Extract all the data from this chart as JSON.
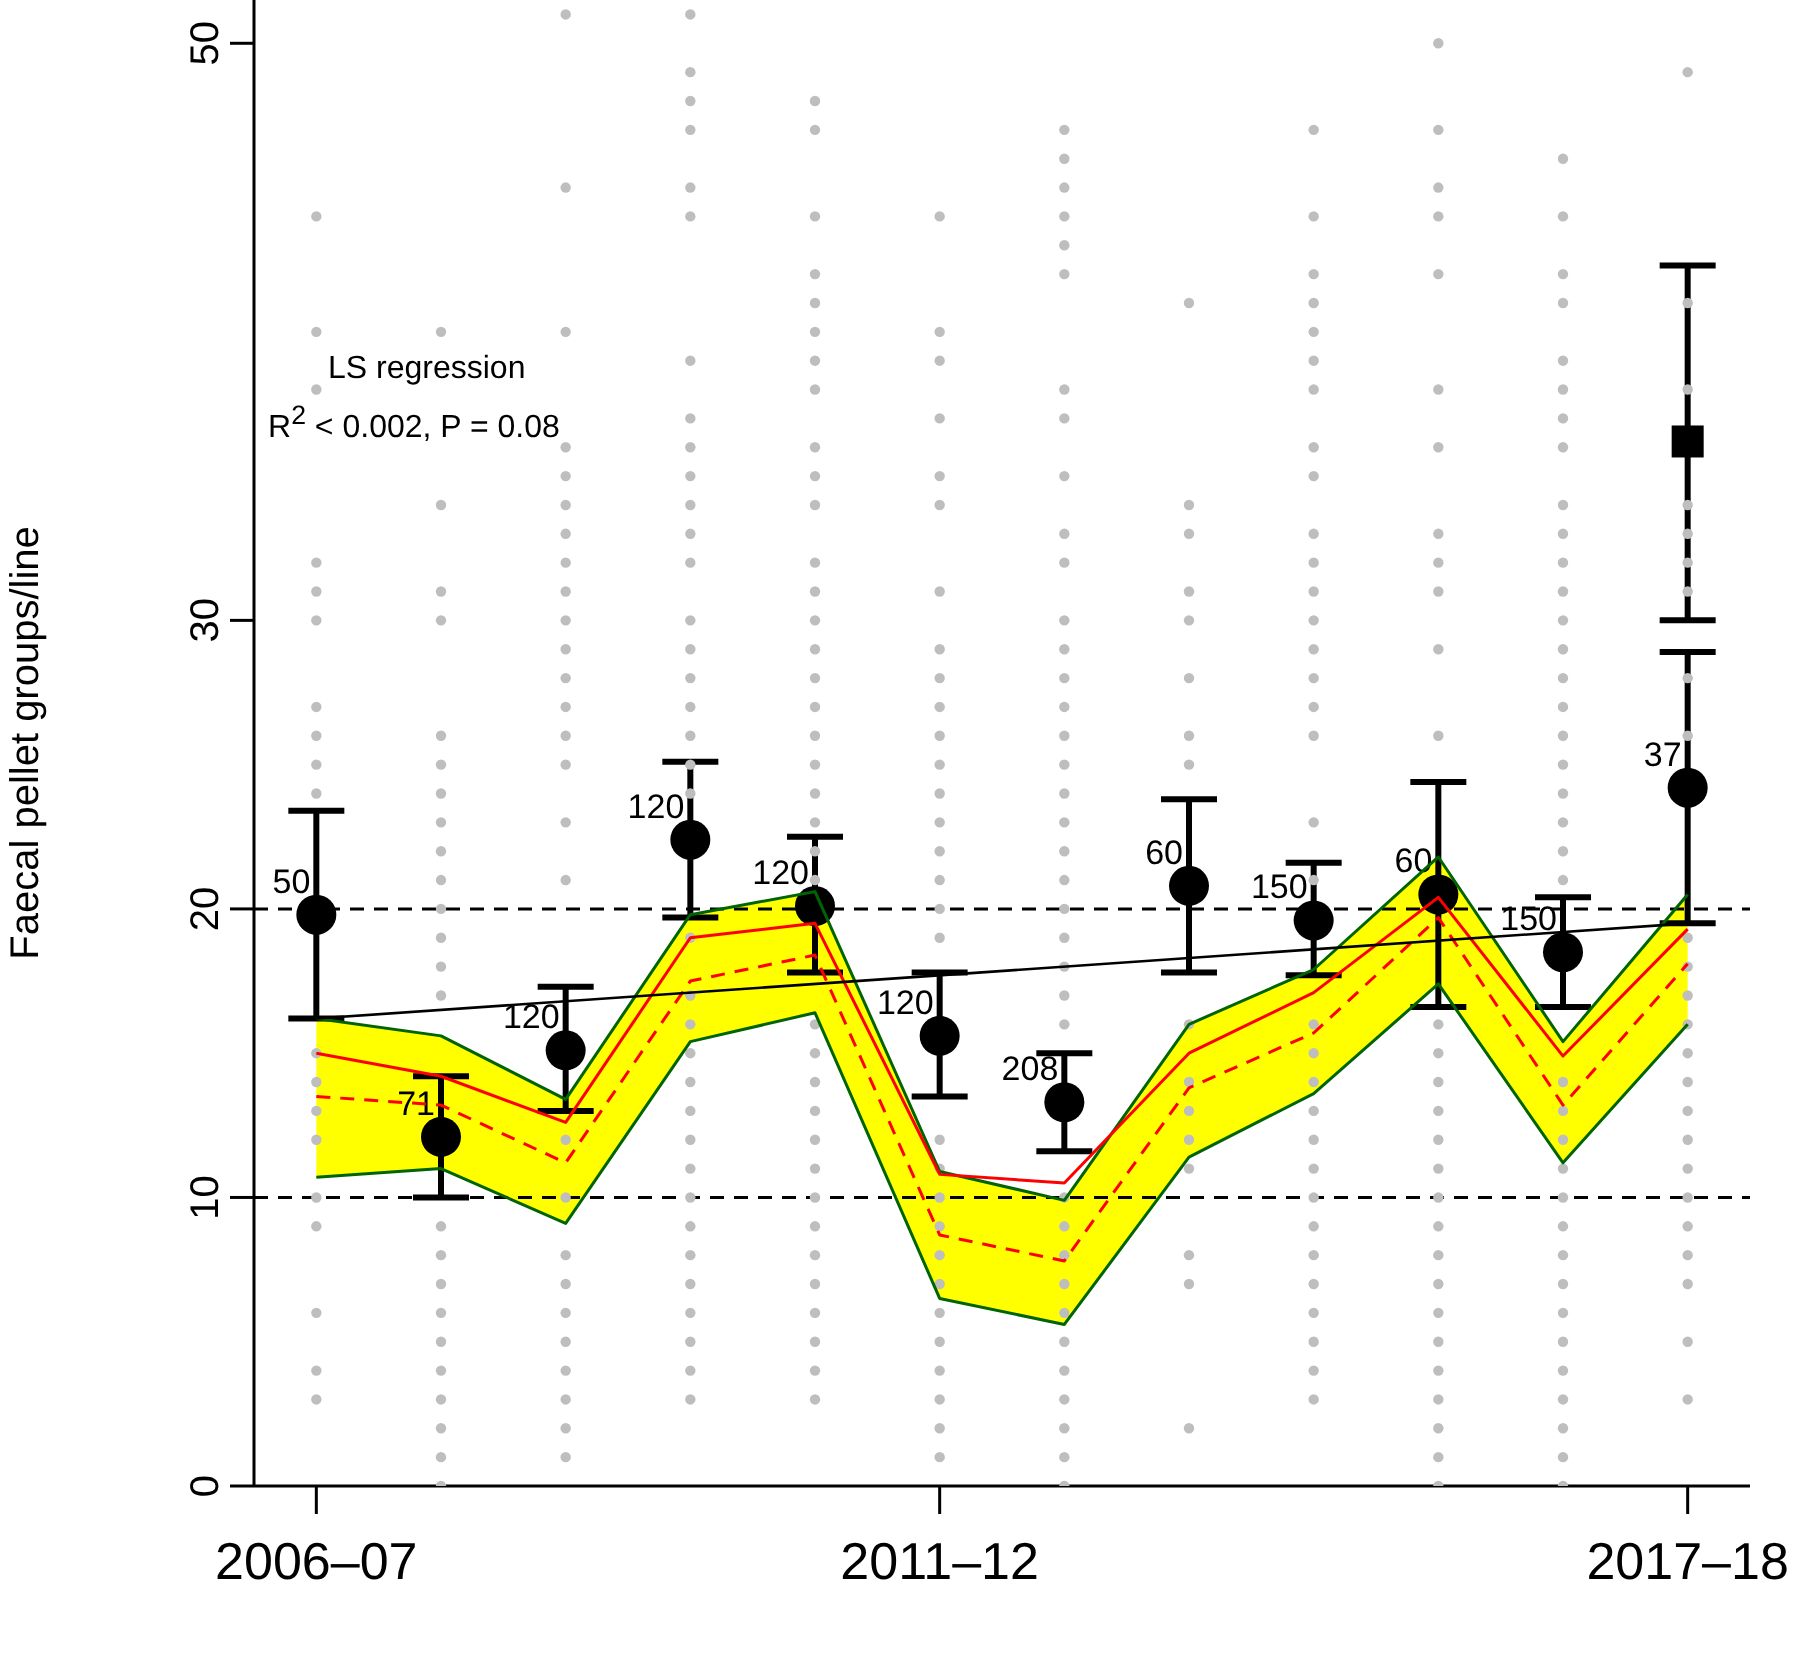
{
  "chart_data": {
    "type": "scatter",
    "ylabel": "Faecal pellet groups/line",
    "x": [
      "2006",
      "2007",
      "2008",
      "2009",
      "2010",
      "2011",
      "2012",
      "2013",
      "2014",
      "2015",
      "2016",
      "2017"
    ],
    "xlim": [
      "2005-07",
      "2017-07"
    ],
    "xticks": [
      {
        "value": "2006",
        "label": "2006–07"
      },
      {
        "value": "2011",
        "label": "2011–12"
      },
      {
        "value": "2017",
        "label": "2017–18"
      }
    ],
    "ylim": [
      0,
      51.5
    ],
    "yticks": [
      0,
      10,
      20,
      30,
      50
    ],
    "grid": false,
    "legend": false,
    "annotations": [
      "LS regression",
      "R$^{2}$ < 0.002, P  = 0.08",
      {
        "text": "50",
        "x": "2006",
        "y": 19.8
      },
      {
        "text": "71",
        "x": "2007",
        "y": 12.1
      },
      {
        "text": "120",
        "x": "2008",
        "y": 15.1
      },
      {
        "text": "120",
        "x": "2009",
        "y": 22.4
      },
      {
        "text": "120",
        "x": "2010",
        "y": 20.1
      },
      {
        "text": "120",
        "x": "2011",
        "y": 15.6
      },
      {
        "text": "208",
        "x": "2012",
        "y": 13.3
      },
      {
        "text": "60",
        "x": "2013",
        "y": 20.8
      },
      {
        "text": "150",
        "x": "2014",
        "y": 19.6
      },
      {
        "text": "60",
        "x": "2015",
        "y": 20.5
      },
      {
        "text": "150",
        "x": "2016",
        "y": 18.5
      },
      {
        "text": "37",
        "x": "2017",
        "y": 24.2
      }
    ],
    "ref_lines": [
      {
        "axis": "y",
        "value": 10,
        "color": "#000000",
        "line_style": "dashed"
      },
      {
        "axis": "y",
        "value": 20,
        "color": "#000000",
        "line_style": "dashed"
      }
    ],
    "series": [
      {
        "type": "scatter",
        "color": "#bebebe",
        "marker": "circle",
        "x": [
          "2006",
          "2006",
          "2006",
          "2006",
          "2006",
          "2006",
          "2006",
          "2006",
          "2006",
          "2006",
          "2006",
          "2006",
          "2006",
          "2006",
          "2006",
          "2006",
          "2006",
          "2006",
          "2006",
          "2007",
          "2007",
          "2007",
          "2007",
          "2007",
          "2007",
          "2007",
          "2007",
          "2007",
          "2007",
          "2007",
          "2007",
          "2007",
          "2007",
          "2007",
          "2007",
          "2007",
          "2007",
          "2007",
          "2007",
          "2007",
          "2007",
          "2007",
          "2007",
          "2008",
          "2008",
          "2008",
          "2008",
          "2008",
          "2008",
          "2008",
          "2008",
          "2008",
          "2008",
          "2008",
          "2008",
          "2008",
          "2008",
          "2008",
          "2008",
          "2008",
          "2008",
          "2008",
          "2008",
          "2008",
          "2008",
          "2008",
          "2008",
          "2008",
          "2008",
          "2008",
          "2009",
          "2009",
          "2009",
          "2009",
          "2009",
          "2009",
          "2009",
          "2009",
          "2009",
          "2009",
          "2009",
          "2009",
          "2009",
          "2009",
          "2009",
          "2009",
          "2009",
          "2009",
          "2009",
          "2009",
          "2009",
          "2009",
          "2009",
          "2009",
          "2009",
          "2009",
          "2009",
          "2009",
          "2009",
          "2009",
          "2009",
          "2009",
          "2009",
          "2009",
          "2009",
          "2009",
          "2010",
          "2010",
          "2010",
          "2010",
          "2010",
          "2010",
          "2010",
          "2010",
          "2010",
          "2010",
          "2010",
          "2010",
          "2010",
          "2010",
          "2010",
          "2010",
          "2010",
          "2010",
          "2010",
          "2010",
          "2010",
          "2010",
          "2010",
          "2010",
          "2010",
          "2010",
          "2010",
          "2010",
          "2010",
          "2010",
          "2010",
          "2010",
          "2010",
          "2010",
          "2010",
          "2010",
          "2010",
          "2011",
          "2011",
          "2011",
          "2011",
          "2011",
          "2011",
          "2011",
          "2011",
          "2011",
          "2011",
          "2011",
          "2011",
          "2011",
          "2011",
          "2011",
          "2011",
          "2011",
          "2011",
          "2011",
          "2011",
          "2011",
          "2011",
          "2011",
          "2011",
          "2011",
          "2011",
          "2011",
          "2011",
          "2011",
          "2011",
          "2012",
          "2012",
          "2012",
          "2012",
          "2012",
          "2012",
          "2012",
          "2012",
          "2012",
          "2012",
          "2012",
          "2012",
          "2012",
          "2012",
          "2012",
          "2012",
          "2012",
          "2012",
          "2012",
          "2012",
          "2012",
          "2012",
          "2012",
          "2012",
          "2012",
          "2012",
          "2012",
          "2012",
          "2012",
          "2012",
          "2012",
          "2012",
          "2012",
          "2012",
          "2012",
          "2012",
          "2012",
          "2013",
          "2013",
          "2013",
          "2013",
          "2013",
          "2013",
          "2013",
          "2013",
          "2013",
          "2013",
          "2013",
          "2013",
          "2013",
          "2013",
          "2013",
          "2013",
          "2014",
          "2014",
          "2014",
          "2014",
          "2014",
          "2014",
          "2014",
          "2014",
          "2014",
          "2014",
          "2014",
          "2014",
          "2014",
          "2014",
          "2014",
          "2014",
          "2014",
          "2014",
          "2014",
          "2014",
          "2014",
          "2014",
          "2014",
          "2014",
          "2014",
          "2014",
          "2014",
          "2014",
          "2014",
          "2014",
          "2014",
          "2014",
          "2014",
          "2015",
          "2015",
          "2015",
          "2015",
          "2015",
          "2015",
          "2015",
          "2015",
          "2015",
          "2015",
          "2015",
          "2015",
          "2015",
          "2015",
          "2015",
          "2015",
          "2015",
          "2015",
          "2015",
          "2015",
          "2015",
          "2015",
          "2015",
          "2015",
          "2015",
          "2015",
          "2015",
          "2015",
          "2015",
          "2016",
          "2016",
          "2016",
          "2016",
          "2016",
          "2016",
          "2016",
          "2016",
          "2016",
          "2016",
          "2016",
          "2016",
          "2016",
          "2016",
          "2016",
          "2016",
          "2016",
          "2016",
          "2016",
          "2016",
          "2016",
          "2016",
          "2016",
          "2016",
          "2016",
          "2016",
          "2016",
          "2016",
          "2016",
          "2016",
          "2016",
          "2016",
          "2016",
          "2016",
          "2016",
          "2016",
          "2016",
          "2017",
          "2017",
          "2017",
          "2017",
          "2017",
          "2017",
          "2017",
          "2017",
          "2017",
          "2017",
          "2017",
          "2017",
          "2017",
          "2017",
          "2017",
          "2017",
          "2017",
          "2017",
          "2017",
          "2017",
          "2017",
          "2017",
          "2017",
          "2017"
        ],
        "values": [
          44,
          40,
          38,
          32,
          31,
          30,
          27,
          26,
          25,
          24,
          15,
          14,
          13,
          12,
          10,
          9,
          6,
          4,
          3,
          40,
          34,
          31,
          30,
          26,
          25,
          24,
          23,
          22,
          21,
          20,
          19,
          18,
          17,
          9,
          8,
          7,
          6,
          5,
          4,
          3,
          2,
          1,
          0,
          51,
          45,
          40,
          36,
          35,
          34,
          33,
          32,
          31,
          30,
          29,
          28,
          27,
          26,
          25,
          23,
          21,
          12,
          10,
          8,
          7,
          6,
          5,
          4,
          3,
          2,
          1,
          51,
          49,
          48,
          47,
          45,
          44,
          39,
          37,
          36,
          35,
          34,
          33,
          32,
          30,
          29,
          28,
          27,
          26,
          25,
          24,
          19,
          17,
          16,
          15,
          14,
          13,
          12,
          11,
          10,
          9,
          8,
          7,
          6,
          5,
          4,
          3,
          48,
          47,
          44,
          42,
          41,
          40,
          39,
          38,
          36,
          35,
          34,
          32,
          31,
          30,
          29,
          28,
          27,
          26,
          25,
          24,
          23,
          22,
          21,
          16,
          15,
          14,
          13,
          12,
          11,
          10,
          9,
          8,
          7,
          6,
          5,
          4,
          3,
          44,
          40,
          39,
          37,
          35,
          34,
          31,
          29,
          28,
          27,
          26,
          25,
          24,
          23,
          22,
          21,
          20,
          19,
          12,
          11,
          10,
          9,
          8,
          7,
          6,
          5,
          4,
          3,
          2,
          1,
          47,
          46,
          45,
          44,
          43,
          42,
          38,
          37,
          35,
          33,
          32,
          30,
          29,
          28,
          27,
          26,
          25,
          24,
          23,
          22,
          21,
          20,
          19,
          18,
          17,
          16,
          10,
          9,
          8,
          7,
          6,
          5,
          4,
          3,
          2,
          1,
          0,
          41,
          34,
          33,
          31,
          30,
          28,
          26,
          25,
          16,
          14,
          13,
          12,
          11,
          8,
          7,
          2,
          47,
          44,
          42,
          41,
          40,
          39,
          38,
          36,
          35,
          33,
          32,
          31,
          30,
          29,
          28,
          27,
          26,
          23,
          21,
          16,
          15,
          14,
          13,
          12,
          11,
          10,
          9,
          8,
          7,
          6,
          5,
          4,
          3,
          50,
          47,
          45,
          44,
          42,
          38,
          36,
          33,
          32,
          31,
          29,
          26,
          16,
          15,
          14,
          13,
          12,
          11,
          10,
          9,
          8,
          7,
          6,
          5,
          4,
          3,
          2,
          1,
          0,
          46,
          44,
          42,
          41,
          39,
          38,
          37,
          36,
          34,
          33,
          32,
          31,
          30,
          29,
          28,
          27,
          26,
          25,
          24,
          23,
          22,
          21,
          14,
          13,
          12,
          11,
          10,
          9,
          8,
          7,
          6,
          5,
          4,
          3,
          2,
          1,
          0,
          49,
          41,
          38,
          34,
          33,
          32,
          31,
          28,
          26,
          19,
          18,
          17,
          16,
          15,
          14,
          13,
          12,
          11,
          10,
          9,
          8,
          7,
          5,
          3
        ]
      },
      {
        "type": "line",
        "color": "#006400",
        "line_style": "solid",
        "values": [
          10.7,
          11.0,
          9.1,
          15.4,
          16.4,
          6.5,
          5.6,
          11.4,
          13.6,
          17.4,
          11.2,
          16.0
        ]
      },
      {
        "type": "line",
        "color": "#006400",
        "line_style": "solid",
        "values": [
          16.2,
          15.6,
          13.4,
          19.8,
          20.6,
          10.9,
          9.9,
          16.0,
          17.9,
          21.8,
          15.4,
          20.5
        ]
      },
      {
        "type": "line",
        "color": "#ff0000",
        "line_style": "solid",
        "values": [
          15.0,
          14.2,
          12.6,
          19.0,
          19.5,
          10.8,
          10.5,
          15.0,
          17.1,
          20.4,
          14.9,
          19.3
        ],
        "lower": [
          10.7,
          11.0,
          9.1,
          15.4,
          16.4,
          6.5,
          5.6,
          11.4,
          13.6,
          17.4,
          11.2,
          16.0
        ],
        "upper": [
          16.2,
          15.6,
          13.4,
          19.8,
          20.6,
          10.9,
          9.9,
          16.0,
          17.9,
          21.8,
          15.4,
          20.5
        ]
      },
      {
        "type": "line",
        "color": "#ff0000",
        "line_style": "dashed",
        "values": [
          13.5,
          13.2,
          11.2,
          17.5,
          18.4,
          8.7,
          7.8,
          13.8,
          15.7,
          19.7,
          13.2,
          18.1
        ]
      },
      {
        "type": "line",
        "color": "#000000",
        "line_style": "solid",
        "x": [
          "2006",
          "2017"
        ],
        "values": [
          16.2,
          19.5
        ]
      },
      {
        "type": "scatter",
        "color": "#000000",
        "marker": "circle",
        "values": [
          19.8,
          12.1,
          15.1,
          22.4,
          20.1,
          15.6,
          13.3,
          20.8,
          19.6,
          20.5,
          18.5,
          24.2
        ],
        "errors": [
          [
            16.2,
            23.4
          ],
          [
            10.0,
            14.2
          ],
          [
            13.0,
            17.3
          ],
          [
            19.7,
            25.1
          ],
          [
            17.8,
            22.5
          ],
          [
            13.5,
            17.8
          ],
          [
            11.6,
            15.0
          ],
          [
            17.8,
            23.8
          ],
          [
            17.7,
            21.6
          ],
          [
            16.6,
            24.4
          ],
          [
            16.6,
            20.4
          ],
          [
            19.5,
            28.9
          ]
        ]
      },
      {
        "type": "scatter",
        "color": "#000000",
        "marker": "square",
        "x": [
          "2017"
        ],
        "values": [
          36.2
        ],
        "errors": [
          [
            30.0,
            42.3
          ]
        ]
      }
    ]
  }
}
